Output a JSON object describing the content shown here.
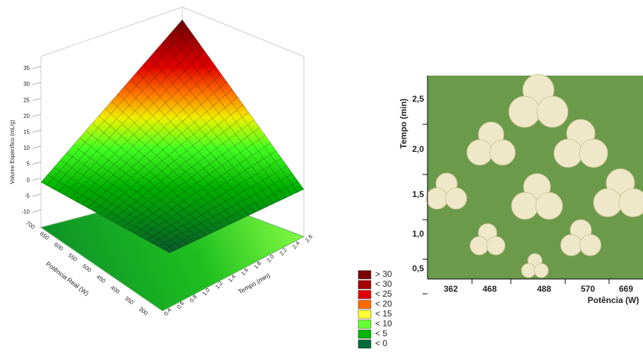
{
  "surface_plot": {
    "z_label": "Volume Específico (mL/g)",
    "z_ticks": [
      "35",
      "30",
      "25",
      "20",
      "15",
      "10",
      "5",
      "0",
      "-5",
      "-10"
    ],
    "y_label": "Potência Real (W)",
    "y_ticks": [
      "700",
      "650",
      "600",
      "550",
      "500",
      "450",
      "400",
      "350",
      "300"
    ],
    "x_label": "Tempo (min)",
    "x_ticks": [
      "0.4",
      "0.6",
      "0.8",
      "1.0",
      "1.2",
      "1.4",
      "1.6",
      "1.8",
      "2.0",
      "2.2",
      "2.4",
      "2.6"
    ]
  },
  "legend": {
    "items": [
      {
        "label": "> 30",
        "color": "#7a0000"
      },
      {
        "label": "< 30",
        "color": "#a50000"
      },
      {
        "label": "< 25",
        "color": "#e00000"
      },
      {
        "label": "< 20",
        "color": "#ff6a00"
      },
      {
        "label": "< 15",
        "color": "#ffff33"
      },
      {
        "label": "< 10",
        "color": "#66ff33"
      },
      {
        "label": "< 5",
        "color": "#00b400"
      },
      {
        "label": "< 0",
        "color": "#006a3a"
      }
    ]
  },
  "photo": {
    "y_label": "Tempo (min)",
    "y_ticks": [
      "2,5",
      "2,0",
      "1,5",
      "1,0",
      "0,5"
    ],
    "x_label": "Potência (W)",
    "x_ticks": [
      "362",
      "468",
      "488",
      "570",
      "669"
    ]
  }
}
